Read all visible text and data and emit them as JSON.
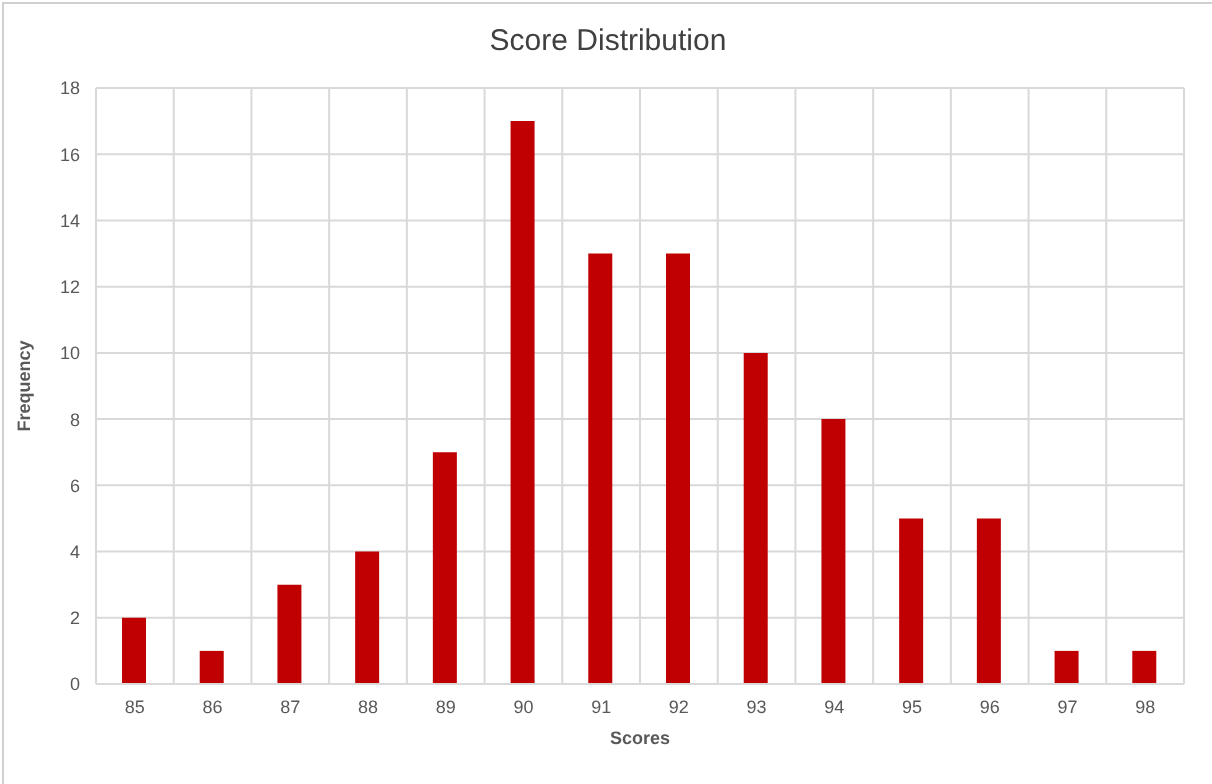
{
  "chart_data": {
    "type": "bar",
    "title": "Score Distribution",
    "xlabel": "Scores",
    "ylabel": "Frequency",
    "categories": [
      "85",
      "86",
      "87",
      "88",
      "89",
      "90",
      "91",
      "92",
      "93",
      "94",
      "95",
      "96",
      "97",
      "98"
    ],
    "values": [
      2,
      1,
      3,
      4,
      7,
      17,
      13,
      13,
      10,
      8,
      5,
      5,
      1,
      1
    ],
    "color": "#c00000",
    "ylim": [
      0,
      18
    ],
    "yticks": [
      0,
      2,
      4,
      6,
      8,
      10,
      12,
      14,
      16,
      18
    ],
    "grid": true
  }
}
